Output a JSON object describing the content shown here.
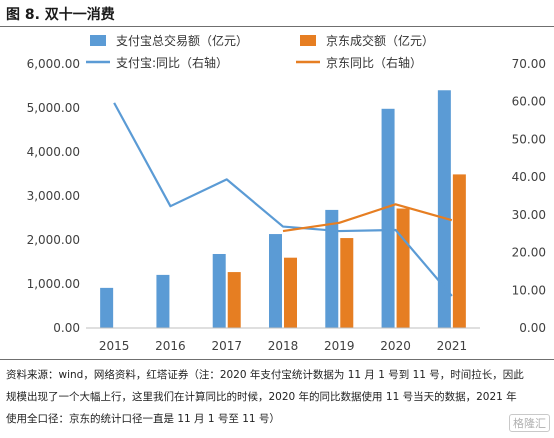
{
  "title": "图 8. 双十一消费",
  "source_note": "资料来源：wind，网络资料，红塔证券（注：2020 年支付宝统计数据为 11 月 1 号到 11 号，时间拉长，因此规模出现了一个大幅上行，这里我们在计算同比的时候，2020 年的同比数据使用 11 号当天的数据，2021 年使用全口径：京东的统计口径一直是 11 月 1 号至 11 号）",
  "watermark": "格隆汇",
  "chart_data": {
    "type": "bar",
    "categories": [
      "2015",
      "2016",
      "2017",
      "2018",
      "2019",
      "2020",
      "2021"
    ],
    "series": [
      {
        "name": "支付宝总交易额（亿元）",
        "kind": "bar",
        "axis": "left",
        "color": "#5b9bd5",
        "values": [
          912,
          1207,
          1682,
          2135,
          2684,
          4982,
          5403
        ]
      },
      {
        "name": "京东成交额（亿元）",
        "kind": "bar",
        "axis": "left",
        "color": "#e67e22",
        "values": [
          null,
          null,
          1271,
          1598,
          2044,
          2715,
          3491
        ]
      },
      {
        "name": "支付宝:同比（右轴）",
        "kind": "line",
        "axis": "right",
        "color": "#5b9bd5",
        "values": [
          59.7,
          32.3,
          39.4,
          26.9,
          25.7,
          26.0,
          8.5
        ]
      },
      {
        "name": "京东同比（右轴）",
        "kind": "line",
        "axis": "right",
        "color": "#e67e22",
        "values": [
          null,
          null,
          null,
          25.7,
          27.9,
          32.8,
          28.6
        ]
      }
    ],
    "left_axis": {
      "min": 0,
      "max": 6000,
      "step": 1000,
      "ticks": [
        "0.00",
        "1,000.00",
        "2,000.00",
        "3,000.00",
        "4,000.00",
        "5,000.00",
        "6,000.00"
      ]
    },
    "right_axis": {
      "min": 0,
      "max": 70,
      "step": 10,
      "ticks": [
        "0.00",
        "10.00",
        "20.00",
        "30.00",
        "40.00",
        "50.00",
        "60.00",
        "70.00"
      ]
    },
    "legend_position": "top",
    "grid": false
  }
}
